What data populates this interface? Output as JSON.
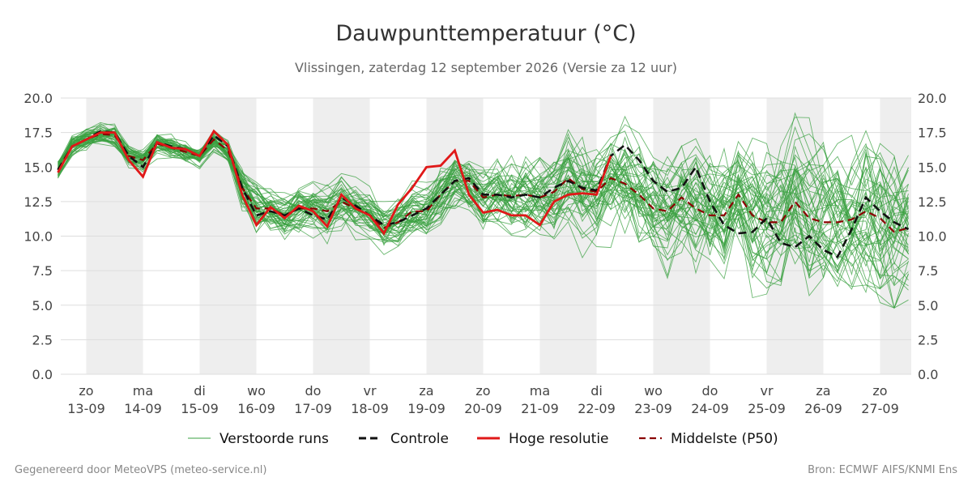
{
  "chart_data": {
    "type": "line",
    "title": "Dauwpunttemperatuur (°C)",
    "subtitle": "Vlissingen, zaterdag 12 september 2026 (Versie za 12 uur)",
    "ylim": [
      0,
      20
    ],
    "yticks": [
      "0.0",
      "2.5",
      "5.0",
      "7.5",
      "10.0",
      "12.5",
      "15.0",
      "17.5",
      "20.0"
    ],
    "x_day_start": "2026-09-12",
    "x_range_days": [
      0.7,
      15.5
    ],
    "days": [
      {
        "day": "zo",
        "date": "13-09"
      },
      {
        "day": "ma",
        "date": "14-09"
      },
      {
        "day": "di",
        "date": "15-09"
      },
      {
        "day": "wo",
        "date": "16-09"
      },
      {
        "day": "do",
        "date": "17-09"
      },
      {
        "day": "vr",
        "date": "18-09"
      },
      {
        "day": "za",
        "date": "19-09"
      },
      {
        "day": "zo",
        "date": "20-09"
      },
      {
        "day": "ma",
        "date": "21-09"
      },
      {
        "day": "di",
        "date": "22-09"
      },
      {
        "day": "wo",
        "date": "23-09"
      },
      {
        "day": "do",
        "date": "24-09"
      },
      {
        "day": "vr",
        "date": "25-09"
      },
      {
        "day": "za",
        "date": "26-09"
      },
      {
        "day": "zo",
        "date": "27-09"
      }
    ],
    "shaded_days": [
      1,
      3,
      5,
      7,
      9,
      11,
      13,
      15
    ],
    "controle": [
      [
        0.5,
        14.8
      ],
      [
        0.75,
        16.5
      ],
      [
        1,
        17.0
      ],
      [
        1.25,
        17.6
      ],
      [
        1.5,
        17.5
      ],
      [
        1.75,
        15.8
      ],
      [
        2,
        15.0
      ],
      [
        2.25,
        16.8
      ],
      [
        2.5,
        16.5
      ],
      [
        2.75,
        16.3
      ],
      [
        3,
        15.8
      ],
      [
        3.25,
        17.3
      ],
      [
        3.5,
        16.5
      ],
      [
        3.75,
        13.5
      ],
      [
        4,
        11.5
      ],
      [
        4.25,
        11.8
      ],
      [
        4.5,
        11.5
      ],
      [
        4.75,
        12.0
      ],
      [
        5,
        11.5
      ],
      [
        5.25,
        11.2
      ],
      [
        5.5,
        12.8
      ],
      [
        5.75,
        12.2
      ],
      [
        6,
        11.5
      ],
      [
        6.25,
        10.8
      ],
      [
        6.5,
        11.0
      ],
      [
        6.75,
        11.5
      ],
      [
        7,
        12.0
      ],
      [
        7.25,
        13.0
      ],
      [
        7.5,
        14.0
      ],
      [
        7.75,
        14.2
      ],
      [
        8,
        13.0
      ],
      [
        8.25,
        13.0
      ],
      [
        8.5,
        12.8
      ],
      [
        8.75,
        13.0
      ],
      [
        9,
        12.8
      ],
      [
        9.25,
        13.5
      ],
      [
        9.5,
        14.0
      ],
      [
        9.75,
        13.5
      ],
      [
        10,
        13.3
      ],
      [
        10.25,
        15.8
      ],
      [
        10.5,
        16.6
      ],
      [
        10.75,
        15.5
      ],
      [
        11,
        14.0
      ],
      [
        11.25,
        13.2
      ],
      [
        11.5,
        13.5
      ],
      [
        11.75,
        15.0
      ],
      [
        12,
        12.5
      ],
      [
        12.25,
        10.8
      ],
      [
        12.5,
        10.2
      ],
      [
        12.75,
        10.3
      ],
      [
        13,
        11.3
      ],
      [
        13.25,
        9.5
      ],
      [
        13.5,
        9.2
      ],
      [
        13.75,
        10.0
      ],
      [
        14,
        9.0
      ],
      [
        14.25,
        8.5
      ],
      [
        14.5,
        10.5
      ],
      [
        14.75,
        12.8
      ],
      [
        15,
        11.8
      ],
      [
        15.25,
        11.0
      ],
      [
        15.5,
        10.5
      ]
    ],
    "hoge_resolutie": [
      [
        0.5,
        14.6
      ],
      [
        0.75,
        16.5
      ],
      [
        1,
        17.0
      ],
      [
        1.25,
        17.5
      ],
      [
        1.5,
        17.5
      ],
      [
        1.75,
        15.5
      ],
      [
        2,
        14.3
      ],
      [
        2.25,
        16.8
      ],
      [
        2.5,
        16.4
      ],
      [
        2.75,
        16.3
      ],
      [
        3,
        15.8
      ],
      [
        3.25,
        17.6
      ],
      [
        3.5,
        16.6
      ],
      [
        3.75,
        13.0
      ],
      [
        4,
        10.8
      ],
      [
        4.25,
        12.1
      ],
      [
        4.5,
        11.3
      ],
      [
        4.75,
        12.2
      ],
      [
        5,
        11.8
      ],
      [
        5.25,
        10.7
      ],
      [
        5.5,
        13.0
      ],
      [
        5.75,
        12.0
      ],
      [
        6,
        11.5
      ],
      [
        6.25,
        10.2
      ],
      [
        6.5,
        12.3
      ],
      [
        6.75,
        13.5
      ],
      [
        7,
        15.0
      ],
      [
        7.25,
        15.1
      ],
      [
        7.5,
        16.2
      ],
      [
        7.75,
        13.0
      ],
      [
        8,
        11.7
      ],
      [
        8.25,
        11.9
      ],
      [
        8.5,
        11.5
      ],
      [
        8.75,
        11.5
      ],
      [
        9,
        10.8
      ],
      [
        9.25,
        12.5
      ],
      [
        9.5,
        13.0
      ],
      [
        9.75,
        13.1
      ],
      [
        10,
        13.0
      ],
      [
        10.25,
        15.8
      ]
    ],
    "middelste_p50": [
      [
        0.5,
        14.8
      ],
      [
        0.75,
        16.5
      ],
      [
        1,
        17.0
      ],
      [
        1.25,
        17.4
      ],
      [
        1.5,
        17.3
      ],
      [
        1.75,
        15.8
      ],
      [
        2,
        15.5
      ],
      [
        2.25,
        16.7
      ],
      [
        2.5,
        16.4
      ],
      [
        2.75,
        16.1
      ],
      [
        3,
        15.8
      ],
      [
        3.25,
        17.0
      ],
      [
        3.5,
        16.2
      ],
      [
        3.75,
        13.5
      ],
      [
        4,
        12.0
      ],
      [
        4.25,
        12.0
      ],
      [
        4.5,
        11.5
      ],
      [
        4.75,
        12.0
      ],
      [
        5,
        12.0
      ],
      [
        5.25,
        11.8
      ],
      [
        5.5,
        12.5
      ],
      [
        5.75,
        12.0
      ],
      [
        6,
        11.5
      ],
      [
        6.25,
        10.6
      ],
      [
        6.5,
        11.0
      ],
      [
        6.75,
        11.8
      ],
      [
        7,
        11.8
      ],
      [
        7.25,
        13.0
      ],
      [
        7.5,
        14.0
      ],
      [
        7.75,
        14.0
      ],
      [
        8,
        12.8
      ],
      [
        8.25,
        13.0
      ],
      [
        8.5,
        12.9
      ],
      [
        8.75,
        13.0
      ],
      [
        9,
        12.8
      ],
      [
        9.25,
        13.2
      ],
      [
        9.5,
        14.2
      ],
      [
        9.75,
        13.4
      ],
      [
        10,
        13.2
      ],
      [
        10.25,
        14.2
      ],
      [
        10.5,
        13.8
      ],
      [
        10.75,
        13.0
      ],
      [
        11,
        12.0
      ],
      [
        11.25,
        11.8
      ],
      [
        11.5,
        12.8
      ],
      [
        11.75,
        12.0
      ],
      [
        12,
        11.5
      ],
      [
        12.25,
        11.5
      ],
      [
        12.5,
        13.0
      ],
      [
        12.75,
        11.5
      ],
      [
        13,
        11.0
      ],
      [
        13.25,
        11.0
      ],
      [
        13.5,
        12.5
      ],
      [
        13.75,
        11.3
      ],
      [
        14,
        11.0
      ],
      [
        14.25,
        11.0
      ],
      [
        14.5,
        11.2
      ],
      [
        14.75,
        11.8
      ],
      [
        15,
        11.3
      ],
      [
        15.25,
        10.3
      ],
      [
        15.5,
        10.6
      ]
    ],
    "legend": [
      {
        "label": "Verstoorde runs",
        "kind": "ensemble"
      },
      {
        "label": "Controle",
        "kind": "controle"
      },
      {
        "label": "Hoge resolutie",
        "kind": "hres"
      },
      {
        "label": "Middelste (P50)",
        "kind": "p50"
      }
    ],
    "colors": {
      "ensemble": "#3aa040",
      "controle": "#111111",
      "hres": "#e01818",
      "p50": "#8b0000",
      "shade": "#eeeeee",
      "grid": "#dddddd"
    }
  },
  "footer": {
    "left": "Gegenereerd door MeteoVPS (meteo-service.nl)",
    "right": "Bron: ECMWF AIFS/KNMI Ens"
  }
}
